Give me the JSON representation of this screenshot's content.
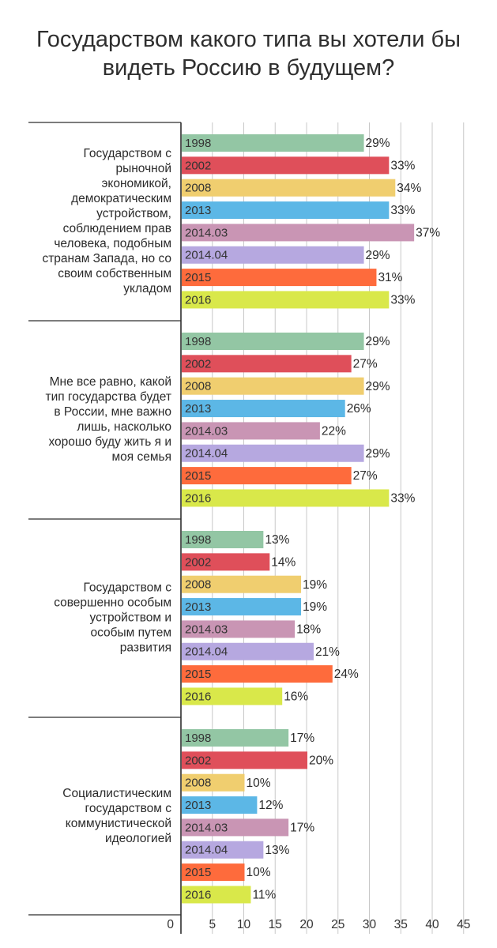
{
  "chart_data": {
    "type": "bar",
    "orientation": "horizontal",
    "title_lines": [
      "Государством какого типа вы хотели бы",
      "видеть Россию в будущем?"
    ],
    "years": [
      "1998",
      "2002",
      "2008",
      "2013",
      "2014.03",
      "2014.04",
      "2015",
      "2016"
    ],
    "colors": [
      "#93c6a4",
      "#df4f5a",
      "#f0ce6f",
      "#5cb7e6",
      "#c995b4",
      "#b6a8e0",
      "#fe6b3c",
      "#d9e84a"
    ],
    "categories": [
      {
        "label_lines": [
          "Государством с",
          "рыночной",
          "экономикой,",
          "демократическим",
          "устройством,",
          "соблюдением прав",
          "человека, подобным",
          "странам Запада, но со",
          "своим собственным",
          "укладом"
        ],
        "values": [
          29,
          33,
          34,
          33,
          37,
          29,
          31,
          33
        ]
      },
      {
        "label_lines": [
          "Мне все равно, какой",
          "тип государства будет",
          "в России, мне важно",
          "лишь, насколько",
          "хорошо буду жить я и",
          "моя семья"
        ],
        "values": [
          29,
          27,
          29,
          26,
          22,
          29,
          27,
          33
        ]
      },
      {
        "label_lines": [
          "Государством с",
          "совершенно особым",
          "устройством и",
          "особым путем",
          "развития"
        ],
        "values": [
          13,
          14,
          19,
          19,
          18,
          21,
          24,
          16
        ]
      },
      {
        "label_lines": [
          "Социалистическим",
          "государством с",
          "коммунистической",
          "идеологией"
        ],
        "values": [
          17,
          20,
          10,
          12,
          17,
          13,
          10,
          11
        ]
      }
    ],
    "value_suffix": "%",
    "x_ticks": [
      0,
      5,
      10,
      15,
      20,
      25,
      30,
      35,
      40,
      45
    ],
    "xlim": [
      0,
      45
    ],
    "grid": true
  }
}
